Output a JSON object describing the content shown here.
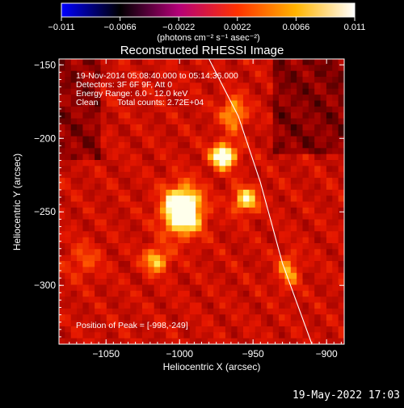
{
  "chart_data": {
    "type": "heatmap",
    "title": "Reconstructed RHESSI Image",
    "xlabel": "Heliocentric X (arcsec)",
    "ylabel": "Heliocentric Y (arcsec)",
    "xlim": [
      -1082,
      -888
    ],
    "ylim": [
      -340,
      -146
    ],
    "xticks": [
      -1050,
      -1000,
      -950,
      -900
    ],
    "yticks": [
      -150,
      -200,
      -250,
      -300
    ],
    "xtick_labels": [
      "−1050",
      "−1000",
      "−950",
      "−900"
    ],
    "ytick_labels": [
      "−150",
      "−200",
      "−250",
      "−300"
    ],
    "colorbar": {
      "min": -0.011,
      "max": 0.011,
      "ticks": [
        -0.011,
        -0.0066,
        -0.0022,
        0.0022,
        0.0066,
        0.011
      ],
      "tick_labels": [
        "−0.011",
        "−0.0066",
        "−0.0022",
        "0.0022",
        "0.0066",
        "0.011"
      ],
      "unit_label": "(photons cm⁻² s⁻¹ asec⁻²)",
      "colors": [
        "#0000ff",
        "#000000",
        "#b40078",
        "#ff3200",
        "#ffb400",
        "#ffffff"
      ]
    },
    "info_lines": [
      "19-Nov-2014 05:08:40.000 to 05:14:36.000",
      "Detectors: 3F 6F 9F, Att 0",
      "Energy Range: 6.0 - 12.0 keV"
    ],
    "info_clean": "Clean",
    "info_counts": "Total counts: 2.72E+04",
    "peak_label": "Position of Peak = [-998,-249]",
    "sources": [
      {
        "x": -998,
        "y": -249,
        "amp": 1.0,
        "sx": 9,
        "sy": 11
      },
      {
        "x": -970,
        "y": -212,
        "amp": 0.78,
        "sx": 6,
        "sy": 6
      },
      {
        "x": -955,
        "y": -242,
        "amp": 0.58,
        "sx": 6,
        "sy": 6
      },
      {
        "x": -1016,
        "y": -283,
        "amp": 0.5,
        "sx": 6,
        "sy": 6
      },
      {
        "x": -963,
        "y": -183,
        "amp": 0.45,
        "sx": 6,
        "sy": 8
      },
      {
        "x": -926,
        "y": -290,
        "amp": 0.38,
        "sx": 5,
        "sy": 8
      },
      {
        "x": -1065,
        "y": -283,
        "amp": 0.22,
        "sx": 8,
        "sy": 8
      }
    ],
    "limb_curve": [
      [
        -980,
        -146
      ],
      [
        -960,
        -185
      ],
      [
        -945,
        -230
      ],
      [
        -930,
        -285
      ],
      [
        -910,
        -340
      ]
    ]
  },
  "footer": {
    "date": "19-May-2022 17:03"
  }
}
